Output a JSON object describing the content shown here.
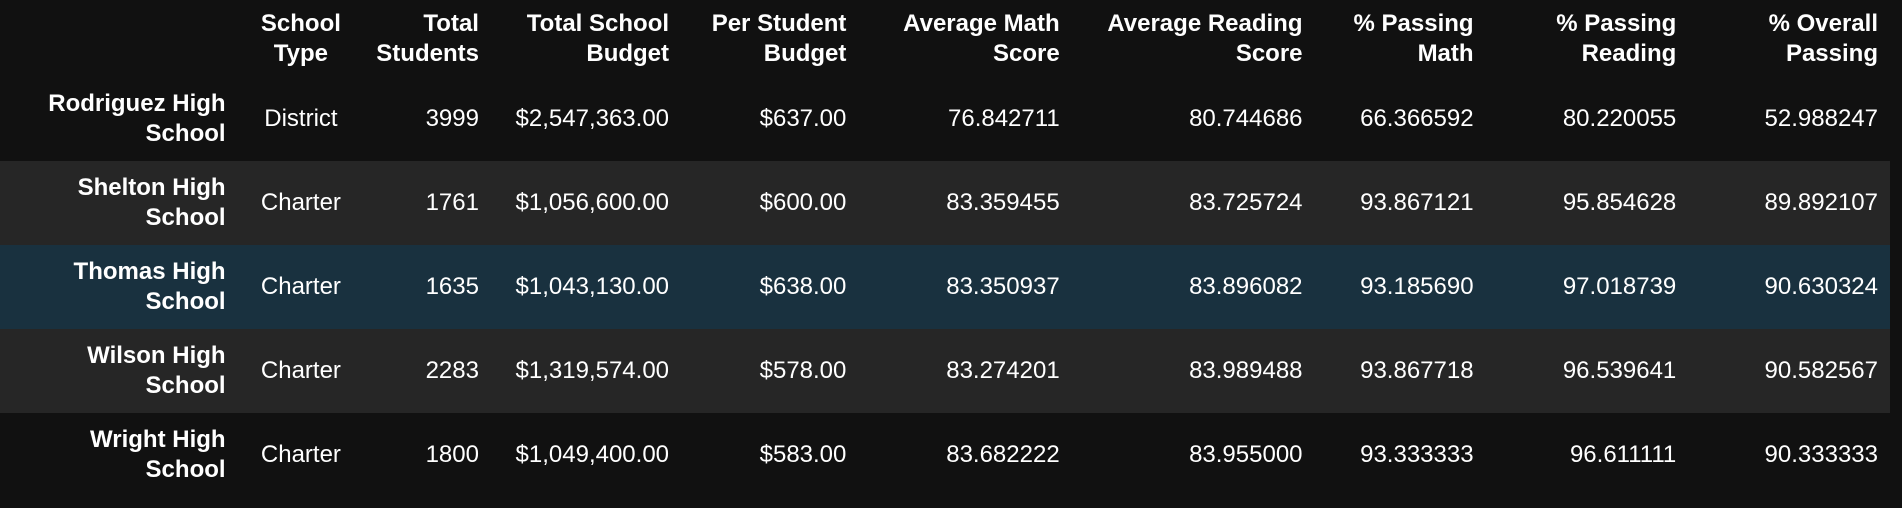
{
  "columns": [
    {
      "line1": "School",
      "line2": "Type"
    },
    {
      "line1": "Total",
      "line2": "Students"
    },
    {
      "line1": "Total School",
      "line2": "Budget"
    },
    {
      "line1": "Per Student",
      "line2": "Budget"
    },
    {
      "line1": "Average Math",
      "line2": "Score"
    },
    {
      "line1": "Average Reading",
      "line2": "Score"
    },
    {
      "line1": "% Passing",
      "line2": "Math"
    },
    {
      "line1": "% Passing",
      "line2": "Reading"
    },
    {
      "line1": "% Overall",
      "line2": "Passing"
    }
  ],
  "rows": [
    {
      "label": {
        "line1": "Rodriguez High",
        "line2": "School"
      },
      "cells": [
        "District",
        "3999",
        "$2,547,363.00",
        "$637.00",
        "76.842711",
        "80.744686",
        "66.366592",
        "80.220055",
        "52.988247"
      ]
    },
    {
      "label": {
        "line1": "Shelton High",
        "line2": "School"
      },
      "cells": [
        "Charter",
        "1761",
        "$1,056,600.00",
        "$600.00",
        "83.359455",
        "83.725724",
        "93.867121",
        "95.854628",
        "89.892107"
      ]
    },
    {
      "label": {
        "line1": "Thomas High",
        "line2": "School"
      },
      "cells": [
        "Charter",
        "1635",
        "$1,043,130.00",
        "$638.00",
        "83.350937",
        "83.896082",
        "93.185690",
        "97.018739",
        "90.630324"
      ]
    },
    {
      "label": {
        "line1": "Wilson High",
        "line2": "School"
      },
      "cells": [
        "Charter",
        "2283",
        "$1,319,574.00",
        "$578.00",
        "83.274201",
        "83.989488",
        "93.867718",
        "96.539641",
        "90.582567"
      ]
    },
    {
      "label": {
        "line1": "Wright High",
        "line2": "School"
      },
      "cells": [
        "Charter",
        "1800",
        "$1,049,400.00",
        "$583.00",
        "83.682222",
        "83.955000",
        "93.333333",
        "96.611111",
        "90.333333"
      ]
    }
  ],
  "colors": {
    "background": "#111111",
    "row_alt": "#262626",
    "row_hover": "#19313f",
    "text": "#ffffff"
  }
}
